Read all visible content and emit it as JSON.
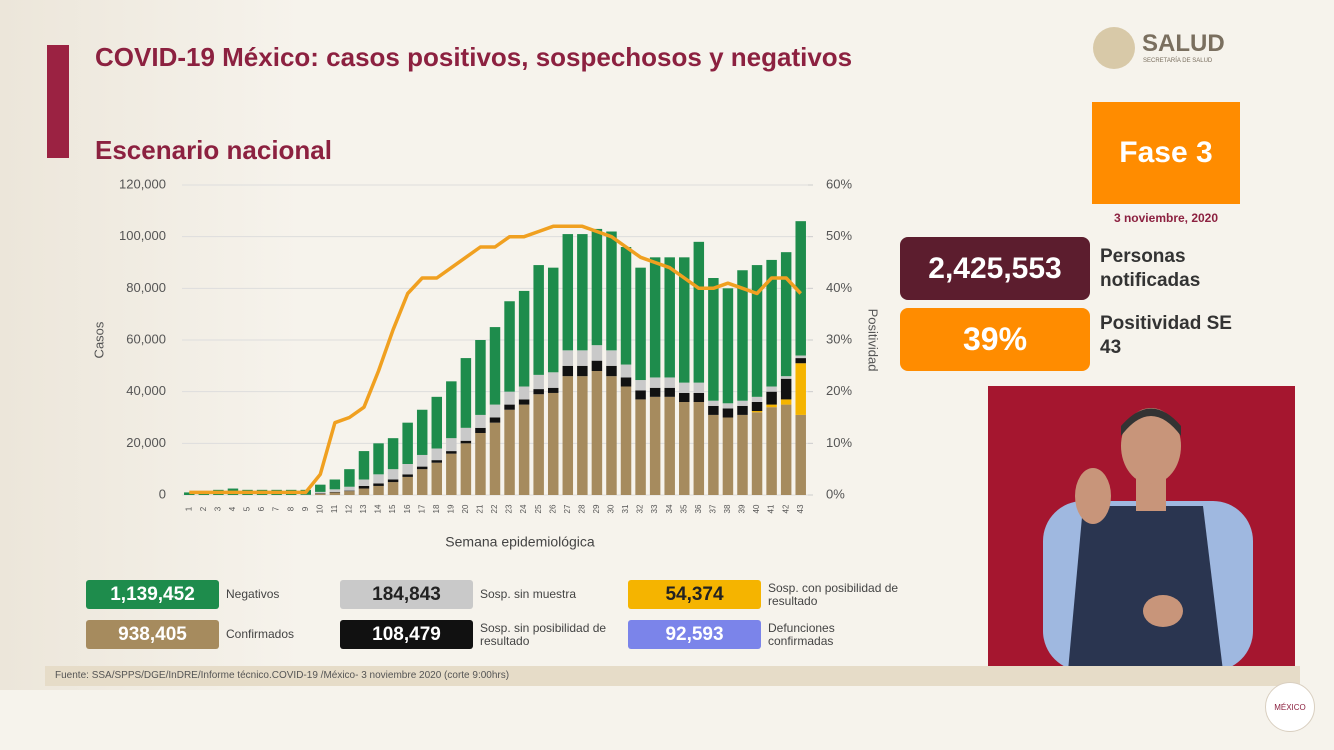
{
  "header": {
    "title": "COVID-19 México: casos positivos, sospechosos y negativos",
    "subtitle": "Escenario nacional",
    "logo": "SALUD",
    "logo_sub": "SECRETARÍA DE SALUD"
  },
  "chart_data": {
    "type": "bar",
    "ylabel": "Casos",
    "y2label": "Positividad",
    "xlabel": "Semana epidemiológica",
    "categories": [
      "1",
      "2",
      "3",
      "4",
      "5",
      "6",
      "7",
      "8",
      "9",
      "10",
      "11",
      "12",
      "13",
      "14",
      "15",
      "16",
      "17",
      "18",
      "19",
      "20",
      "21",
      "22",
      "23",
      "24",
      "25",
      "26",
      "27",
      "28",
      "29",
      "30",
      "31",
      "32",
      "33",
      "34",
      "35",
      "36",
      "37",
      "38",
      "39",
      "40",
      "41",
      "42",
      "43"
    ],
    "ylim": [
      0,
      120000
    ],
    "yticks": [
      0,
      {
        "value": 20000,
        "label": "20,000"
      },
      {
        "value": 40000,
        "label": "40,000"
      },
      {
        "value": 60000,
        "label": "60,000"
      },
      {
        "value": 80000,
        "label": "80,000"
      },
      {
        "value": 100000,
        "label": "100,000"
      },
      {
        "value": 120000,
        "label": "120,000"
      }
    ],
    "y2lim": [
      0,
      60
    ],
    "y2ticks": [
      {
        "value": 0,
        "label": "0%"
      },
      {
        "value": 10,
        "label": "10%"
      },
      {
        "value": 20,
        "label": "20%"
      },
      {
        "value": 30,
        "label": "30%"
      },
      {
        "value": 40,
        "label": "40%"
      },
      {
        "value": 50,
        "label": "50%"
      },
      {
        "value": 60,
        "label": "60%"
      }
    ],
    "stacked": true,
    "series": [
      {
        "name": "Confirmados",
        "total": "938,405",
        "color": "#a68b5e",
        "values": [
          0,
          0,
          0,
          0,
          0,
          0,
          0,
          0,
          100,
          500,
          1000,
          1500,
          2500,
          3500,
          5000,
          7000,
          10000,
          12500,
          16000,
          20000,
          24000,
          28000,
          33000,
          35000,
          39000,
          39500,
          46000,
          46000,
          48000,
          46000,
          42000,
          37000,
          38000,
          38000,
          36000,
          36000,
          31000,
          30000,
          31000,
          32000,
          34000,
          35000,
          31000
        ]
      },
      {
        "name": "Sosp. con posibilidad de resultado",
        "total": "54,374",
        "color": "#f5b400",
        "values": [
          0,
          0,
          0,
          0,
          0,
          0,
          0,
          0,
          0,
          0,
          0,
          0,
          0,
          0,
          0,
          0,
          0,
          0,
          0,
          0,
          0,
          0,
          0,
          0,
          0,
          0,
          0,
          0,
          0,
          0,
          0,
          0,
          0,
          0,
          0,
          0,
          0,
          0,
          0,
          500,
          1000,
          2000,
          20000
        ]
      },
      {
        "name": "Sosp. sin posibilidad de resultado",
        "total": "108,479",
        "color": "#111111",
        "values": [
          0,
          0,
          0,
          0,
          0,
          0,
          0,
          0,
          0,
          200,
          200,
          200,
          1000,
          1000,
          1000,
          1000,
          1000,
          1000,
          1000,
          1000,
          2000,
          2000,
          2000,
          2000,
          2000,
          2000,
          4000,
          4000,
          4000,
          4000,
          3500,
          3500,
          3500,
          3500,
          3500,
          3500,
          3500,
          3500,
          3500,
          3500,
          5000,
          8000,
          2000
        ]
      },
      {
        "name": "Sosp. sin muestra",
        "total": "184,843",
        "color": "#c9c9c9",
        "values": [
          0,
          0,
          0,
          0,
          0,
          0,
          0,
          0,
          0,
          500,
          1000,
          1500,
          2500,
          3500,
          4000,
          4000,
          4500,
          4500,
          5000,
          5000,
          5000,
          5000,
          5000,
          5000,
          5500,
          6000,
          6000,
          6000,
          6000,
          6000,
          5000,
          4000,
          4000,
          4000,
          4000,
          4000,
          2000,
          2000,
          2000,
          2000,
          2000,
          1000,
          1000
        ]
      },
      {
        "name": "Negativos",
        "total": "1,139,452",
        "color": "#1e8c4c",
        "values": [
          1000,
          1500,
          2000,
          2500,
          2000,
          2000,
          2000,
          2000,
          1900,
          2800,
          3800,
          6800,
          11000,
          12000,
          12000,
          16000,
          17500,
          20000,
          22000,
          27000,
          29000,
          30000,
          35000,
          37000,
          42500,
          40500,
          45000,
          45000,
          45000,
          46000,
          45500,
          43500,
          46500,
          46500,
          48500,
          54500,
          47500,
          44500,
          50500,
          51000,
          49000,
          48000,
          52000
        ]
      },
      {
        "type": "line",
        "axis": "y2",
        "color": "#f0a020",
        "values": [
          0.5,
          0.5,
          0.5,
          0.5,
          0.5,
          0.5,
          0.5,
          0.5,
          0.5,
          4,
          14,
          15,
          17,
          24,
          32,
          39,
          42,
          42,
          44,
          46,
          48,
          48,
          50,
          50,
          51,
          52,
          52,
          52,
          51,
          50,
          48,
          46,
          45,
          44,
          42,
          40,
          40,
          41,
          40,
          39,
          42,
          42,
          39
        ]
      }
    ],
    "extra_legend": {
      "name": "Defunciones confirmadas",
      "total": "92,593",
      "color": "#7b84ea"
    }
  },
  "panel": {
    "phase": "Fase 3",
    "date": "3 noviembre, 2020",
    "notified": "2,425,553",
    "notified_label": "Personas notificadas",
    "positivity": "39%",
    "positivity_label": "Positividad SE 43"
  },
  "footer": {
    "source": "Fuente: SSA/SPPS/DGE/InDRE/Informe técnico.COVID-19 /México- 3 noviembre 2020 (corte 9:00hrs)",
    "gov": "MÉXICO"
  }
}
